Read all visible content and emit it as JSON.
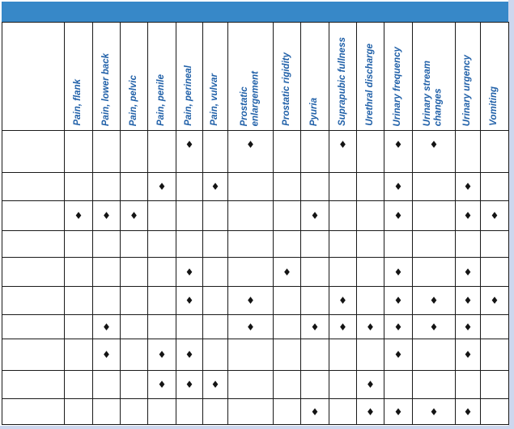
{
  "page": {
    "header_bar_color": "#3788c8",
    "edge_strip_color": "#cdd7ee",
    "grid_line_color": "#1a1a1a",
    "header_text_color": "#2060a8",
    "marker": "♦"
  },
  "table": {
    "row_label_header": "",
    "columns": [
      "Pain, flank",
      "Pain, lower back",
      "Pain, pelvic",
      "Pain, penile",
      "Pain, perineal",
      "Pain, vulvar",
      "Prostatic\nenlargement",
      "Prostatic rigidity",
      "Pyuria",
      "Suprapubic fullness",
      "Urethral discharge",
      "Urinary frequency",
      "Urinary stream\nchanges",
      "Urinary urgency",
      "Vomiting"
    ],
    "rows": [
      {
        "label": "",
        "mark_col_indices": [
          4,
          6,
          9,
          11,
          12
        ]
      },
      {
        "label": "",
        "mark_col_indices": [
          3,
          5,
          11,
          13
        ]
      },
      {
        "label": "",
        "mark_col_indices": [
          0,
          1,
          2,
          8,
          11,
          13,
          14
        ]
      },
      {
        "label": "",
        "mark_col_indices": []
      },
      {
        "label": "",
        "mark_col_indices": [
          4,
          7,
          11,
          13
        ]
      },
      {
        "label": "",
        "mark_col_indices": [
          4,
          6,
          9,
          11,
          12,
          13,
          14
        ]
      },
      {
        "label": "",
        "mark_col_indices": [
          1,
          6,
          8,
          9,
          10,
          11,
          12,
          13
        ]
      },
      {
        "label": "",
        "mark_col_indices": [
          1,
          3,
          4,
          11,
          13
        ]
      },
      {
        "label": "",
        "mark_col_indices": [
          3,
          4,
          5,
          10
        ]
      },
      {
        "label": "",
        "mark_col_indices": [
          8,
          10,
          11,
          12,
          13
        ]
      }
    ]
  }
}
